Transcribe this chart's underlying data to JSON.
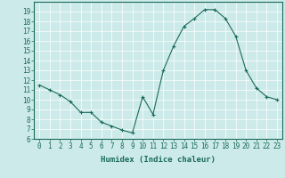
{
  "x": [
    0,
    1,
    2,
    3,
    4,
    5,
    6,
    7,
    8,
    9,
    10,
    11,
    12,
    13,
    14,
    15,
    16,
    17,
    18,
    19,
    20,
    21,
    22,
    23
  ],
  "y": [
    11.5,
    11.0,
    10.5,
    9.8,
    8.7,
    8.7,
    7.7,
    7.3,
    6.9,
    6.6,
    10.3,
    8.5,
    13.0,
    15.5,
    17.5,
    18.3,
    19.2,
    19.2,
    18.3,
    16.5,
    13.0,
    11.2,
    10.3,
    10.0
  ],
  "xlim": [
    -0.5,
    23.5
  ],
  "ylim": [
    6,
    20
  ],
  "xticks": [
    0,
    1,
    2,
    3,
    4,
    5,
    6,
    7,
    8,
    9,
    10,
    11,
    12,
    13,
    14,
    15,
    16,
    17,
    18,
    19,
    20,
    21,
    22,
    23
  ],
  "yticks": [
    6,
    7,
    8,
    9,
    10,
    11,
    12,
    13,
    14,
    15,
    16,
    17,
    18,
    19
  ],
  "xlabel": "Humidex (Indice chaleur)",
  "line_color": "#1a6b5a",
  "marker": "+",
  "bg_color": "#cdeaea",
  "grid_color": "#b0d8d8",
  "tick_label_fontsize": 5.5,
  "xlabel_fontsize": 6.5
}
